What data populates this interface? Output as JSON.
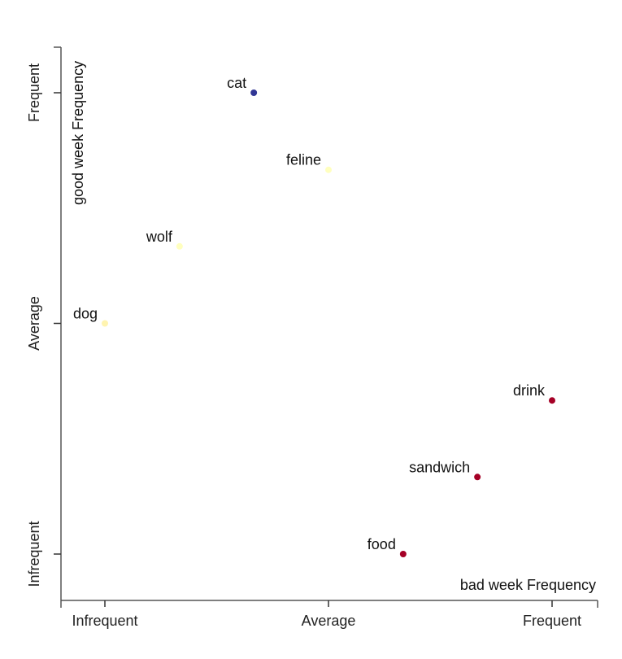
{
  "chart_data": {
    "type": "scatter",
    "xlabel": "bad week Frequency",
    "ylabel": "good week Frequency",
    "x_ticks": [
      "Infrequent",
      "Average",
      "Frequent"
    ],
    "y_ticks": [
      "Infrequent",
      "Average",
      "Frequent"
    ],
    "xlim": [
      -0.1,
      1.1
    ],
    "ylim": [
      -0.1,
      1.1
    ],
    "grid": false,
    "legend": "none",
    "points": [
      {
        "label": "cat",
        "x": 0.333,
        "y": 1.0,
        "color": "#313695"
      },
      {
        "label": "feline",
        "x": 0.5,
        "y": 0.833,
        "color": "#ffffbf"
      },
      {
        "label": "wolf",
        "x": 0.167,
        "y": 0.667,
        "color": "#ffffbf"
      },
      {
        "label": "dog",
        "x": 0.0,
        "y": 0.5,
        "color": "#fff4b0"
      },
      {
        "label": "drink",
        "x": 1.0,
        "y": 0.333,
        "color": "#a50026"
      },
      {
        "label": "sandwich",
        "x": 0.833,
        "y": 0.167,
        "color": "#a50026"
      },
      {
        "label": "food",
        "x": 0.667,
        "y": 0.0,
        "color": "#a50026"
      }
    ]
  }
}
